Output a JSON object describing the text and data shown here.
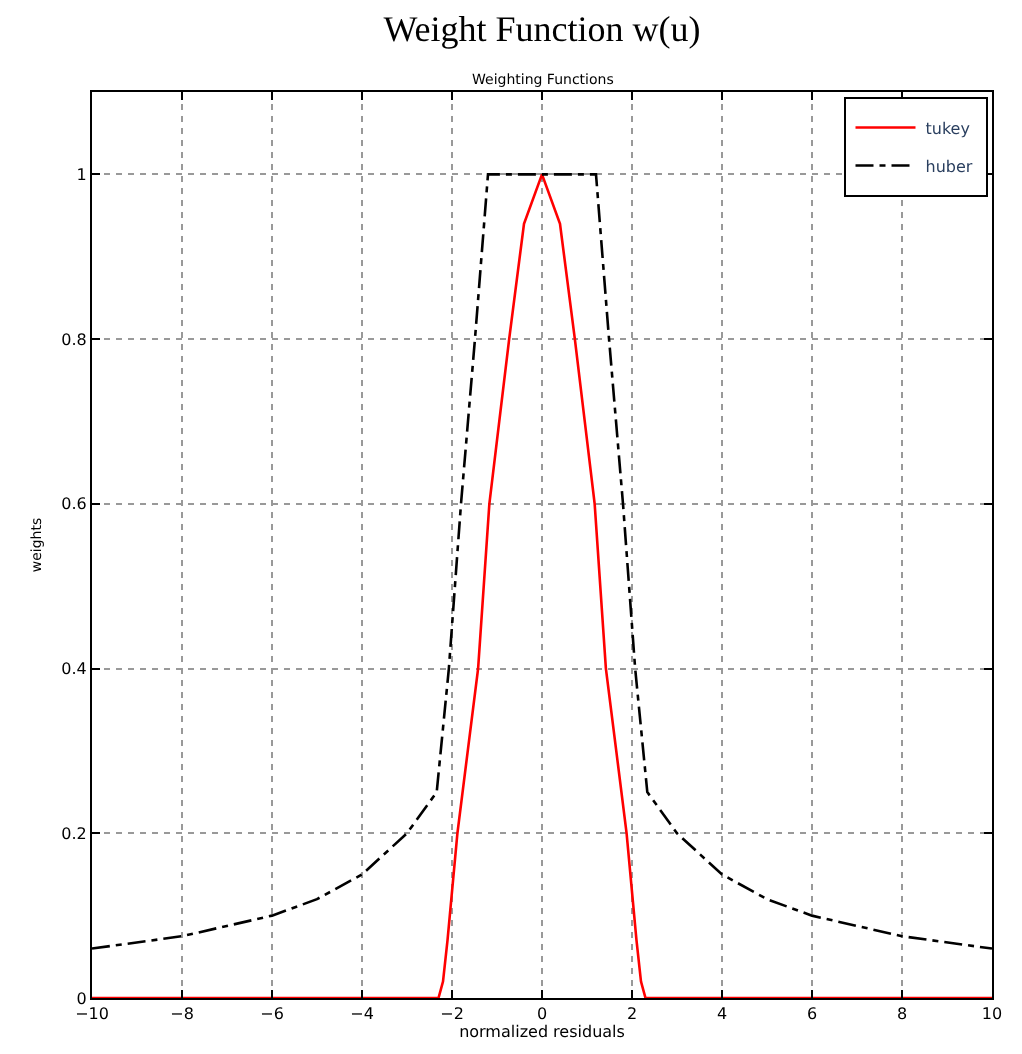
{
  "chart_data": {
    "type": "line",
    "title": "Weight Function w(u)",
    "subtitle": "Weighting Functions",
    "xlabel": "normalized residuals",
    "ylabel": "weights",
    "series": [
      {
        "name": "tukey",
        "color": "#ff0000",
        "line_style": "solid",
        "x": [
          -10,
          -2.3,
          -2.2,
          -2.1,
          -1.88,
          -1.65,
          -1.42,
          -1.17,
          -0.95,
          -0.73,
          -0.4,
          0,
          0.4,
          0.73,
          0.95,
          1.17,
          1.42,
          1.65,
          1.88,
          2.1,
          2.2,
          2.3,
          10
        ],
        "values": [
          0,
          0,
          0.02,
          0.07,
          0.2,
          0.3,
          0.4,
          0.6,
          0.7,
          0.8,
          0.94,
          1,
          0.94,
          0.8,
          0.7,
          0.6,
          0.4,
          0.3,
          0.2,
          0.07,
          0.02,
          0,
          0
        ]
      },
      {
        "name": "huber",
        "color": "#000000",
        "line_style": "dashdot",
        "x": [
          -10,
          -8,
          -6,
          -5,
          -4,
          -3,
          -2.34,
          -2.07,
          -1.8,
          -1.49,
          -1.2,
          1.2,
          1.49,
          1.8,
          2.07,
          2.34,
          3,
          4,
          5,
          6,
          8,
          10
        ],
        "values": [
          0.06,
          0.075,
          0.1,
          0.12,
          0.15,
          0.2,
          0.25,
          0.4,
          0.6,
          0.8,
          1,
          1,
          0.8,
          0.6,
          0.4,
          0.25,
          0.2,
          0.15,
          0.12,
          0.1,
          0.075,
          0.06
        ]
      }
    ],
    "xlim": [
      -10,
      10
    ],
    "xticks": [
      {
        "value": -10,
        "label": "−10"
      },
      {
        "value": -8,
        "label": "−8"
      },
      {
        "value": -6,
        "label": "−6"
      },
      {
        "value": -4,
        "label": "−4"
      },
      {
        "value": -2,
        "label": "−2"
      },
      0,
      2,
      4,
      6,
      8,
      10
    ],
    "ylim": [
      0,
      1.1
    ],
    "yticks": [
      0,
      0.2,
      0.4,
      0.6,
      0.8,
      1
    ],
    "grid": true,
    "legend": "top right",
    "marker": "none"
  }
}
